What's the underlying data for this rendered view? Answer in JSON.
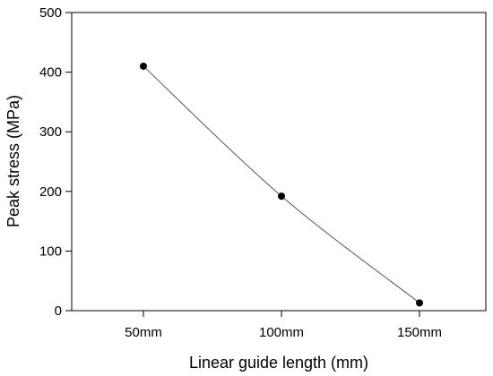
{
  "chart_data": {
    "type": "line",
    "title": "",
    "xlabel": "Linear guide length (mm)",
    "ylabel": "Peak stress (MPa)",
    "categories": [
      "50mm",
      "100mm",
      "150mm"
    ],
    "series": [
      {
        "values": [
          410,
          192,
          13
        ]
      }
    ],
    "ylim": [
      0,
      500
    ],
    "yticks": [
      0,
      100,
      200,
      300,
      400,
      500
    ],
    "grid": false,
    "legend": "none",
    "colors": {
      "line": "#555555",
      "marker": "#000000",
      "axis": "#000000"
    }
  }
}
